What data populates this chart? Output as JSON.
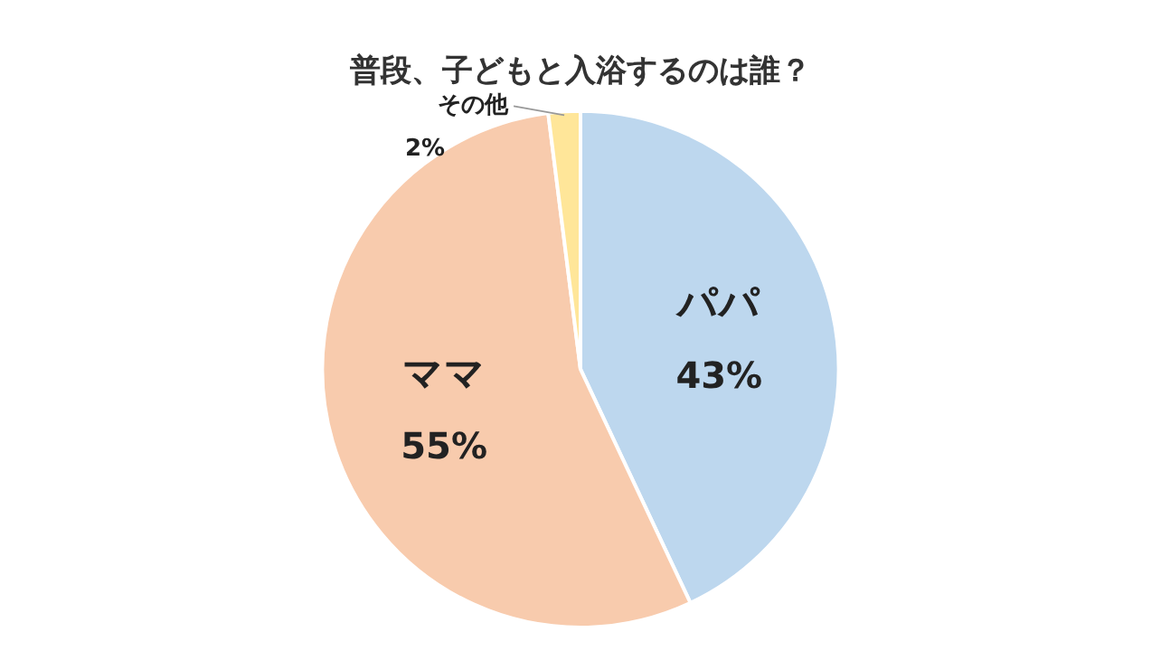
{
  "chart_data": {
    "type": "pie",
    "title": "普段、子どもと入浴するのは誰？",
    "categories": [
      "パパ",
      "ママ",
      "その他"
    ],
    "values": [
      43,
      55,
      2
    ],
    "value_labels": [
      "43%",
      "55%",
      "2%"
    ],
    "colors": [
      "#bdd7ee",
      "#f8cbad",
      "#ffe699"
    ],
    "legend": false
  }
}
